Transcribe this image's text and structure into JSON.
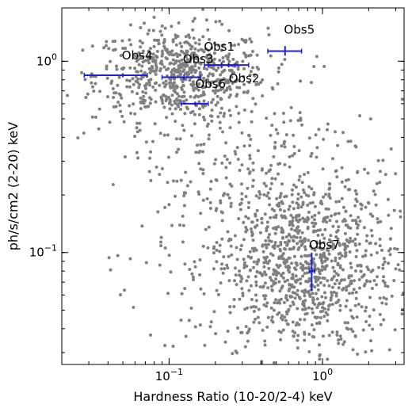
{
  "chart_data": {
    "type": "scatter",
    "title": "",
    "xlabel": "Hardness Ratio (10-20/2-4) keV",
    "ylabel": "ph/s/cm2 (2-20) keV",
    "xscale": "log",
    "yscale": "log",
    "xlim": [
      0.02,
      3.4
    ],
    "ylim": [
      0.026,
      1.9
    ],
    "grid": false,
    "legend": "none",
    "x_ticks": [
      {
        "value": 0.1,
        "base": "10",
        "exp": "−1"
      },
      {
        "value": 1,
        "base": "10",
        "exp": "0"
      }
    ],
    "y_ticks": [
      {
        "value": 0.1,
        "base": "10",
        "exp": "−1"
      },
      {
        "value": 1,
        "base": "10",
        "exp": "0"
      }
    ],
    "colors": {
      "background_points": "#808080",
      "observations": "#1f1fd6"
    },
    "background_clusters": [
      {
        "center_x": 0.12,
        "center_y": 0.85,
        "spread_x_dex": 0.28,
        "spread_y_dex": 0.12,
        "count": 650
      },
      {
        "center_x": 0.75,
        "center_y": 0.085,
        "spread_x_dex": 0.3,
        "spread_y_dex": 0.24,
        "count": 1050
      },
      {
        "center_x": 0.28,
        "center_y": 0.3,
        "spread_x_dex": 0.45,
        "spread_y_dex": 0.32,
        "count": 280
      }
    ],
    "series": [
      {
        "name": "Obs1",
        "x": 0.22,
        "x_err": [
          0.18,
          0.27
        ],
        "y": 0.955,
        "y_err": [
          0.92,
          0.99
        ]
      },
      {
        "name": "Obs2",
        "x": 0.245,
        "x_err": [
          0.17,
          0.33
        ],
        "y": 0.955,
        "y_err": [
          0.93,
          0.98
        ]
      },
      {
        "name": "Obs3",
        "x": 0.125,
        "x_err": [
          0.09,
          0.16
        ],
        "y": 0.825,
        "y_err": [
          0.8,
          0.85
        ]
      },
      {
        "name": "Obs4",
        "x": 0.05,
        "x_err": [
          0.028,
          0.072
        ],
        "y": 0.845,
        "y_err": [
          0.825,
          0.865
        ]
      },
      {
        "name": "Obs5",
        "x": 0.57,
        "x_err": [
          0.44,
          0.73
        ],
        "y": 1.13,
        "y_err": [
          1.07,
          1.2
        ]
      },
      {
        "name": "Obs6",
        "x": 0.148,
        "x_err": [
          0.12,
          0.18
        ],
        "y": 0.6,
        "y_err": [
          0.585,
          0.615
        ]
      },
      {
        "name": "Obs7",
        "x": 0.85,
        "x_err": [
          0.82,
          0.89
        ],
        "y": 0.08,
        "y_err": [
          0.063,
          0.1
        ]
      }
    ]
  }
}
